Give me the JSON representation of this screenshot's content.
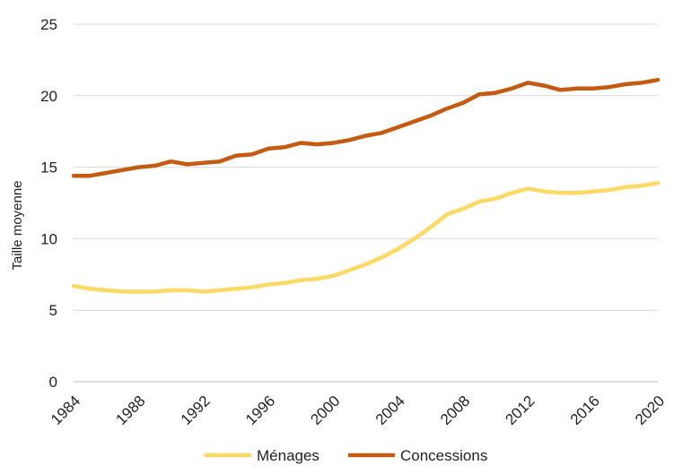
{
  "chart_data": {
    "type": "line",
    "ylabel": "Taille moyenne",
    "xlabel": "",
    "title": "",
    "xlim": [
      1984,
      2020
    ],
    "ylim": [
      0,
      25
    ],
    "x_ticks": [
      1984,
      1988,
      1992,
      1996,
      2000,
      2004,
      2008,
      2012,
      2016,
      2020
    ],
    "x_tick_labels": [
      "1984",
      "1988",
      "1992",
      "1996",
      "2000",
      "2004",
      "2008",
      "2012",
      "2016",
      "2020"
    ],
    "y_ticks": [
      0,
      5,
      10,
      15,
      20,
      25
    ],
    "y_tick_labels": [
      "0",
      "5",
      "10",
      "15",
      "20",
      "25"
    ],
    "grid": "horizontal",
    "legend_position": "bottom",
    "x": [
      1984,
      1985,
      1986,
      1987,
      1988,
      1989,
      1990,
      1991,
      1992,
      1993,
      1994,
      1995,
      1996,
      1997,
      1998,
      1999,
      2000,
      2001,
      2002,
      2003,
      2004,
      2005,
      2006,
      2007,
      2008,
      2009,
      2010,
      2011,
      2012,
      2013,
      2014,
      2015,
      2016,
      2017,
      2018,
      2019,
      2020
    ],
    "series": [
      {
        "name": "Ménages",
        "color": "#FFD966",
        "values": [
          6.7,
          6.5,
          6.4,
          6.3,
          6.3,
          6.3,
          6.4,
          6.4,
          6.3,
          6.4,
          6.5,
          6.6,
          6.8,
          6.9,
          7.1,
          7.2,
          7.4,
          7.8,
          8.2,
          8.7,
          9.3,
          10.0,
          10.8,
          11.7,
          12.1,
          12.6,
          12.8,
          13.2,
          13.5,
          13.3,
          13.2,
          13.2,
          13.3,
          13.4,
          13.6,
          13.7,
          13.9
        ]
      },
      {
        "name": "Concessions",
        "color": "#C55A11",
        "values": [
          14.4,
          14.4,
          14.6,
          14.8,
          15.0,
          15.1,
          15.4,
          15.2,
          15.3,
          15.4,
          15.8,
          15.9,
          16.3,
          16.4,
          16.7,
          16.6,
          16.7,
          16.9,
          17.2,
          17.4,
          17.8,
          18.2,
          18.6,
          19.1,
          19.5,
          20.1,
          20.2,
          20.5,
          20.9,
          20.7,
          20.4,
          20.5,
          20.5,
          20.6,
          20.8,
          20.9,
          21.1
        ]
      }
    ]
  }
}
